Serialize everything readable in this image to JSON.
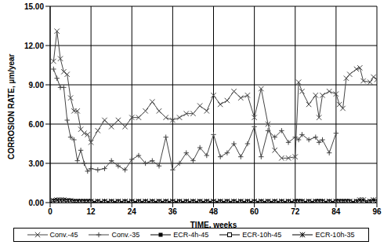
{
  "chart_data": {
    "type": "line",
    "x_label": "TIME, weeks",
    "y_label": "CORROSION RATE, µm/year",
    "x": [
      1,
      2,
      3,
      4,
      5,
      6,
      7,
      8,
      9,
      10,
      11,
      12,
      14,
      16,
      18,
      20,
      22,
      24,
      26,
      28,
      30,
      32,
      34,
      36,
      38,
      40,
      42,
      44,
      46,
      48,
      50,
      52,
      54,
      56,
      58,
      60,
      62,
      64,
      66,
      68,
      70,
      72,
      73,
      74,
      76,
      78,
      79,
      80,
      82,
      84,
      85,
      86,
      87,
      88,
      90,
      91,
      92,
      94,
      95,
      96
    ],
    "xlim": [
      0,
      96
    ],
    "xticks": [
      0,
      12,
      24,
      36,
      48,
      60,
      72,
      84,
      96
    ],
    "ylim": [
      0,
      15
    ],
    "yticks": [
      {
        "value": 0,
        "label": "0.00"
      },
      {
        "value": 3,
        "label": "3.00"
      },
      {
        "value": 6,
        "label": "6.00"
      },
      {
        "value": 9,
        "label": "9.00"
      },
      {
        "value": 12,
        "label": "12.00"
      },
      {
        "value": 15,
        "label": "15.00"
      }
    ],
    "grid": true,
    "legend": "bottom",
    "series": [
      {
        "name": "Conv.-45",
        "color": "#444444",
        "marker": "x",
        "values": [
          10.8,
          13.1,
          11.0,
          10.0,
          9.8,
          8.0,
          7.0,
          7.0,
          5.6,
          5.3,
          5.2,
          4.6,
          5.5,
          6.3,
          5.8,
          6.3,
          5.8,
          6.5,
          6.5,
          7.0,
          7.7,
          7.0,
          6.5,
          6.3,
          6.5,
          6.8,
          6.8,
          7.4,
          7.0,
          8.2,
          7.5,
          7.8,
          8.5,
          8.0,
          8.2,
          6.5,
          8.7,
          6.0,
          4.0,
          3.4,
          3.4,
          3.5,
          9.2,
          8.5,
          7.5,
          8.2,
          6.5,
          8.2,
          8.5,
          8.3,
          7.5,
          7.2,
          9.5,
          9.8,
          10.2,
          10.3,
          9.3,
          9.2,
          9.6,
          9.4
        ]
      },
      {
        "name": "Conv.-35",
        "color": "#444444",
        "marker": "plus",
        "values": [
          10.2,
          9.5,
          8.8,
          8.8,
          6.3,
          5.0,
          4.8,
          3.2,
          4.0,
          3.0,
          2.4,
          2.6,
          2.5,
          2.6,
          3.2,
          2.8,
          2.5,
          3.3,
          3.6,
          3.0,
          3.2,
          2.8,
          5.0,
          2.5,
          3.0,
          3.8,
          3.2,
          4.2,
          3.6,
          5.2,
          3.5,
          3.8,
          4.5,
          3.5,
          4.5,
          5.8,
          3.5,
          5.5,
          5.0,
          5.5,
          4.6,
          5.0,
          4.8,
          5.2,
          4.8,
          5.0,
          4.6,
          4.8,
          3.8,
          5.3,
          null,
          null,
          null,
          null,
          null,
          null,
          null,
          null,
          null,
          null
        ]
      },
      {
        "name": "ECR-4h-45",
        "color": "#000000",
        "marker": "square",
        "values": [
          0.05,
          0.05,
          0.05,
          0.05,
          0.05,
          0.05,
          0.05,
          0.05,
          0.05,
          0.05,
          0.05,
          0.05,
          0.05,
          0.05,
          0.05,
          0.05,
          0.05,
          0.05,
          0.05,
          0.05,
          0.05,
          0.05,
          0.05,
          0.05,
          0.05,
          0.05,
          0.05,
          0.05,
          0.05,
          0.05,
          0.05,
          0.05,
          0.05,
          0.05,
          0.05,
          0.05,
          0.05,
          0.05,
          0.05,
          0.05,
          0.05,
          0.05,
          0.05,
          0.05,
          0.05,
          0.05,
          0.05,
          0.05,
          0.05,
          0.05,
          0.05,
          0.05,
          0.05,
          0.05,
          0.05,
          0.05,
          0.05,
          0.05,
          0.05,
          0.05
        ]
      },
      {
        "name": "ECR-10h-45",
        "color": "#000000",
        "marker": "open_square",
        "values": [
          0.1,
          0.1,
          0.1,
          0.1,
          0.1,
          0.1,
          0.05,
          0.05,
          0.05,
          0.05,
          0.05,
          0.05,
          0.05,
          0.05,
          0.05,
          0.05,
          0.05,
          0.05,
          0.05,
          0.05,
          0.05,
          0.05,
          0.05,
          0.05,
          0.05,
          0.05,
          0.05,
          0.05,
          0.05,
          0.05,
          0.05,
          0.05,
          0.05,
          0.05,
          0.05,
          0.05,
          0.05,
          0.05,
          0.05,
          0.05,
          0.05,
          0.05,
          0.05,
          0.05,
          0.05,
          0.05,
          0.05,
          0.05,
          0.05,
          0.05,
          0.05,
          0.05,
          0.05,
          0.05,
          0.05,
          0.05,
          0.05,
          0.05,
          0.05,
          0.05
        ]
      },
      {
        "name": "ECR-10h-35",
        "color": "#000000",
        "marker": "asterisk",
        "values": [
          0.15,
          0.2,
          0.2,
          0.2,
          0.15,
          0.15,
          0.1,
          0.1,
          0.1,
          0.1,
          0.1,
          0.1,
          0.1,
          0.1,
          0.1,
          0.1,
          0.1,
          0.1,
          0.1,
          0.1,
          0.1,
          0.1,
          0.1,
          0.1,
          0.1,
          0.1,
          0.1,
          0.1,
          0.1,
          0.1,
          0.1,
          0.1,
          0.1,
          0.1,
          0.1,
          0.1,
          0.1,
          0.1,
          0.1,
          0.1,
          0.1,
          0.1,
          0.1,
          0.1,
          0.1,
          0.1,
          0.1,
          0.1,
          0.1,
          0.1,
          0.1,
          0.1,
          0.1,
          0.1,
          0.1,
          0.2,
          0.2,
          0.1,
          0.2,
          0.1
        ]
      }
    ]
  }
}
